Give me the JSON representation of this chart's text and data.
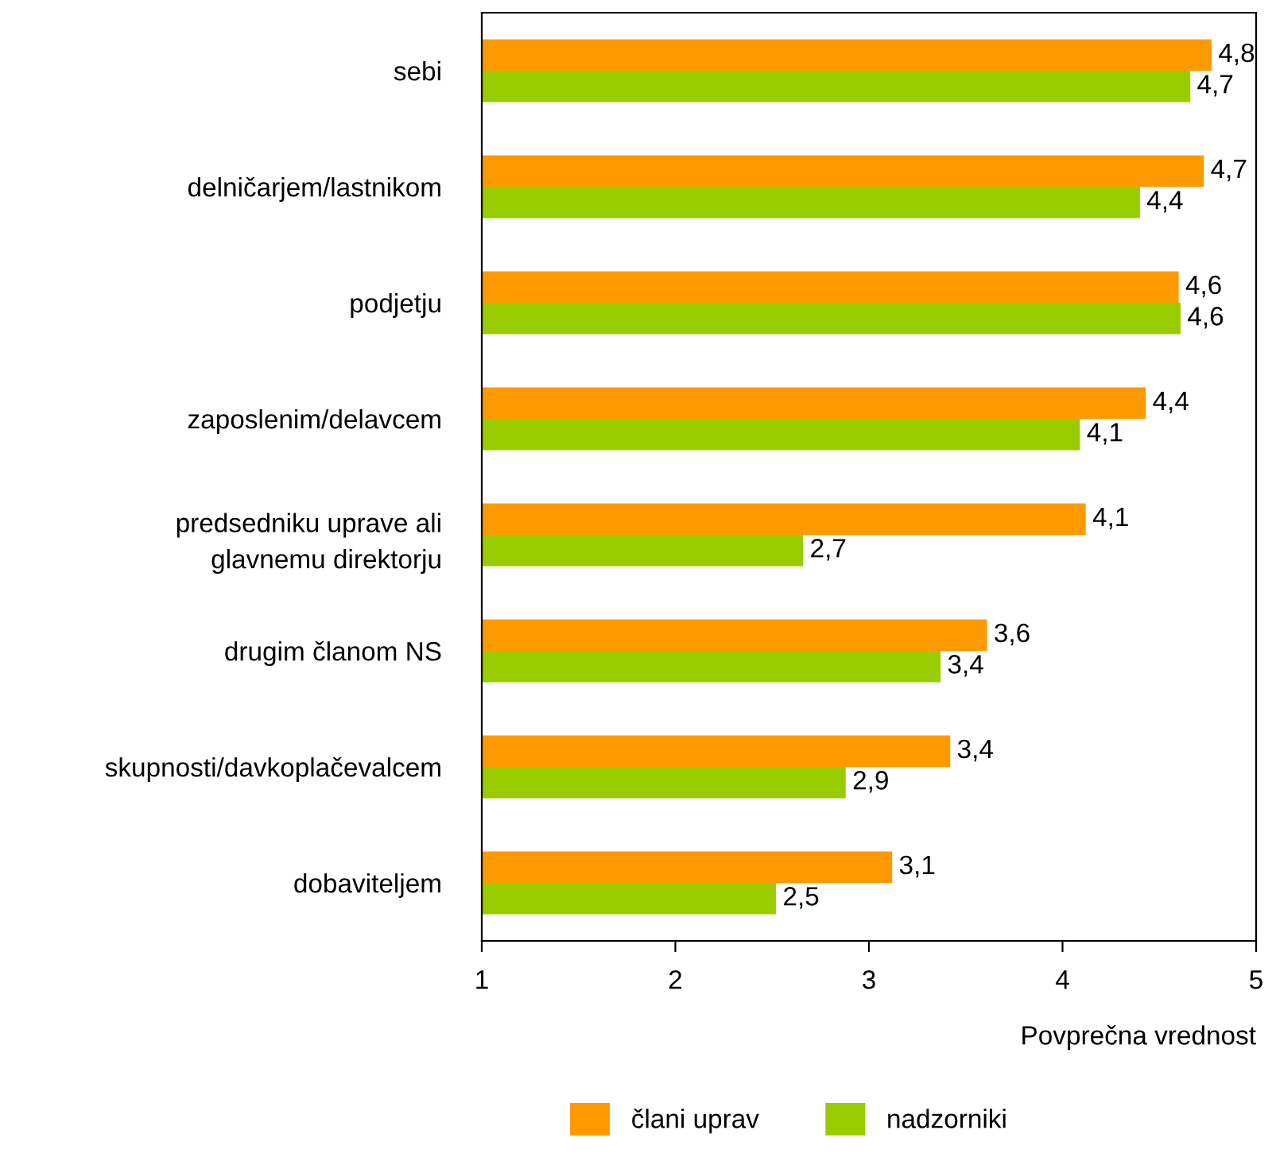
{
  "chart_data": {
    "type": "bar",
    "orientation": "horizontal",
    "xlabel": "Povprečna vrednost",
    "categories": [
      "sebi",
      "delničarjem/lastnikom",
      "podjetju",
      "zaposlenim/delavcem",
      "predsedniku uprave ali\nglavnemu direktorju",
      "drugim članom NS",
      "skupnosti/davkoplačevalcem",
      "dobaviteljem"
    ],
    "series": [
      {
        "name": "člani uprav",
        "color": "#ff9900",
        "values": [
          4.77,
          4.73,
          4.6,
          4.43,
          4.12,
          3.61,
          3.42,
          3.12
        ],
        "value_labels": [
          "4,8",
          "4,7",
          "4,6",
          "4,4",
          "4,1",
          "3,6",
          "3,4",
          "3,1"
        ]
      },
      {
        "name": "nadzorniki",
        "color": "#99cc00",
        "values": [
          4.66,
          4.4,
          4.61,
          4.09,
          2.66,
          3.37,
          2.88,
          2.52
        ],
        "value_labels": [
          "4,7",
          "4,4",
          "4,6",
          "4,1",
          "2,7",
          "3,4",
          "2,9",
          "2,5"
        ]
      }
    ],
    "xlim": [
      1,
      5
    ],
    "xticks": [
      1,
      2,
      3,
      4,
      5
    ],
    "grid": false,
    "legend": "bottom"
  }
}
